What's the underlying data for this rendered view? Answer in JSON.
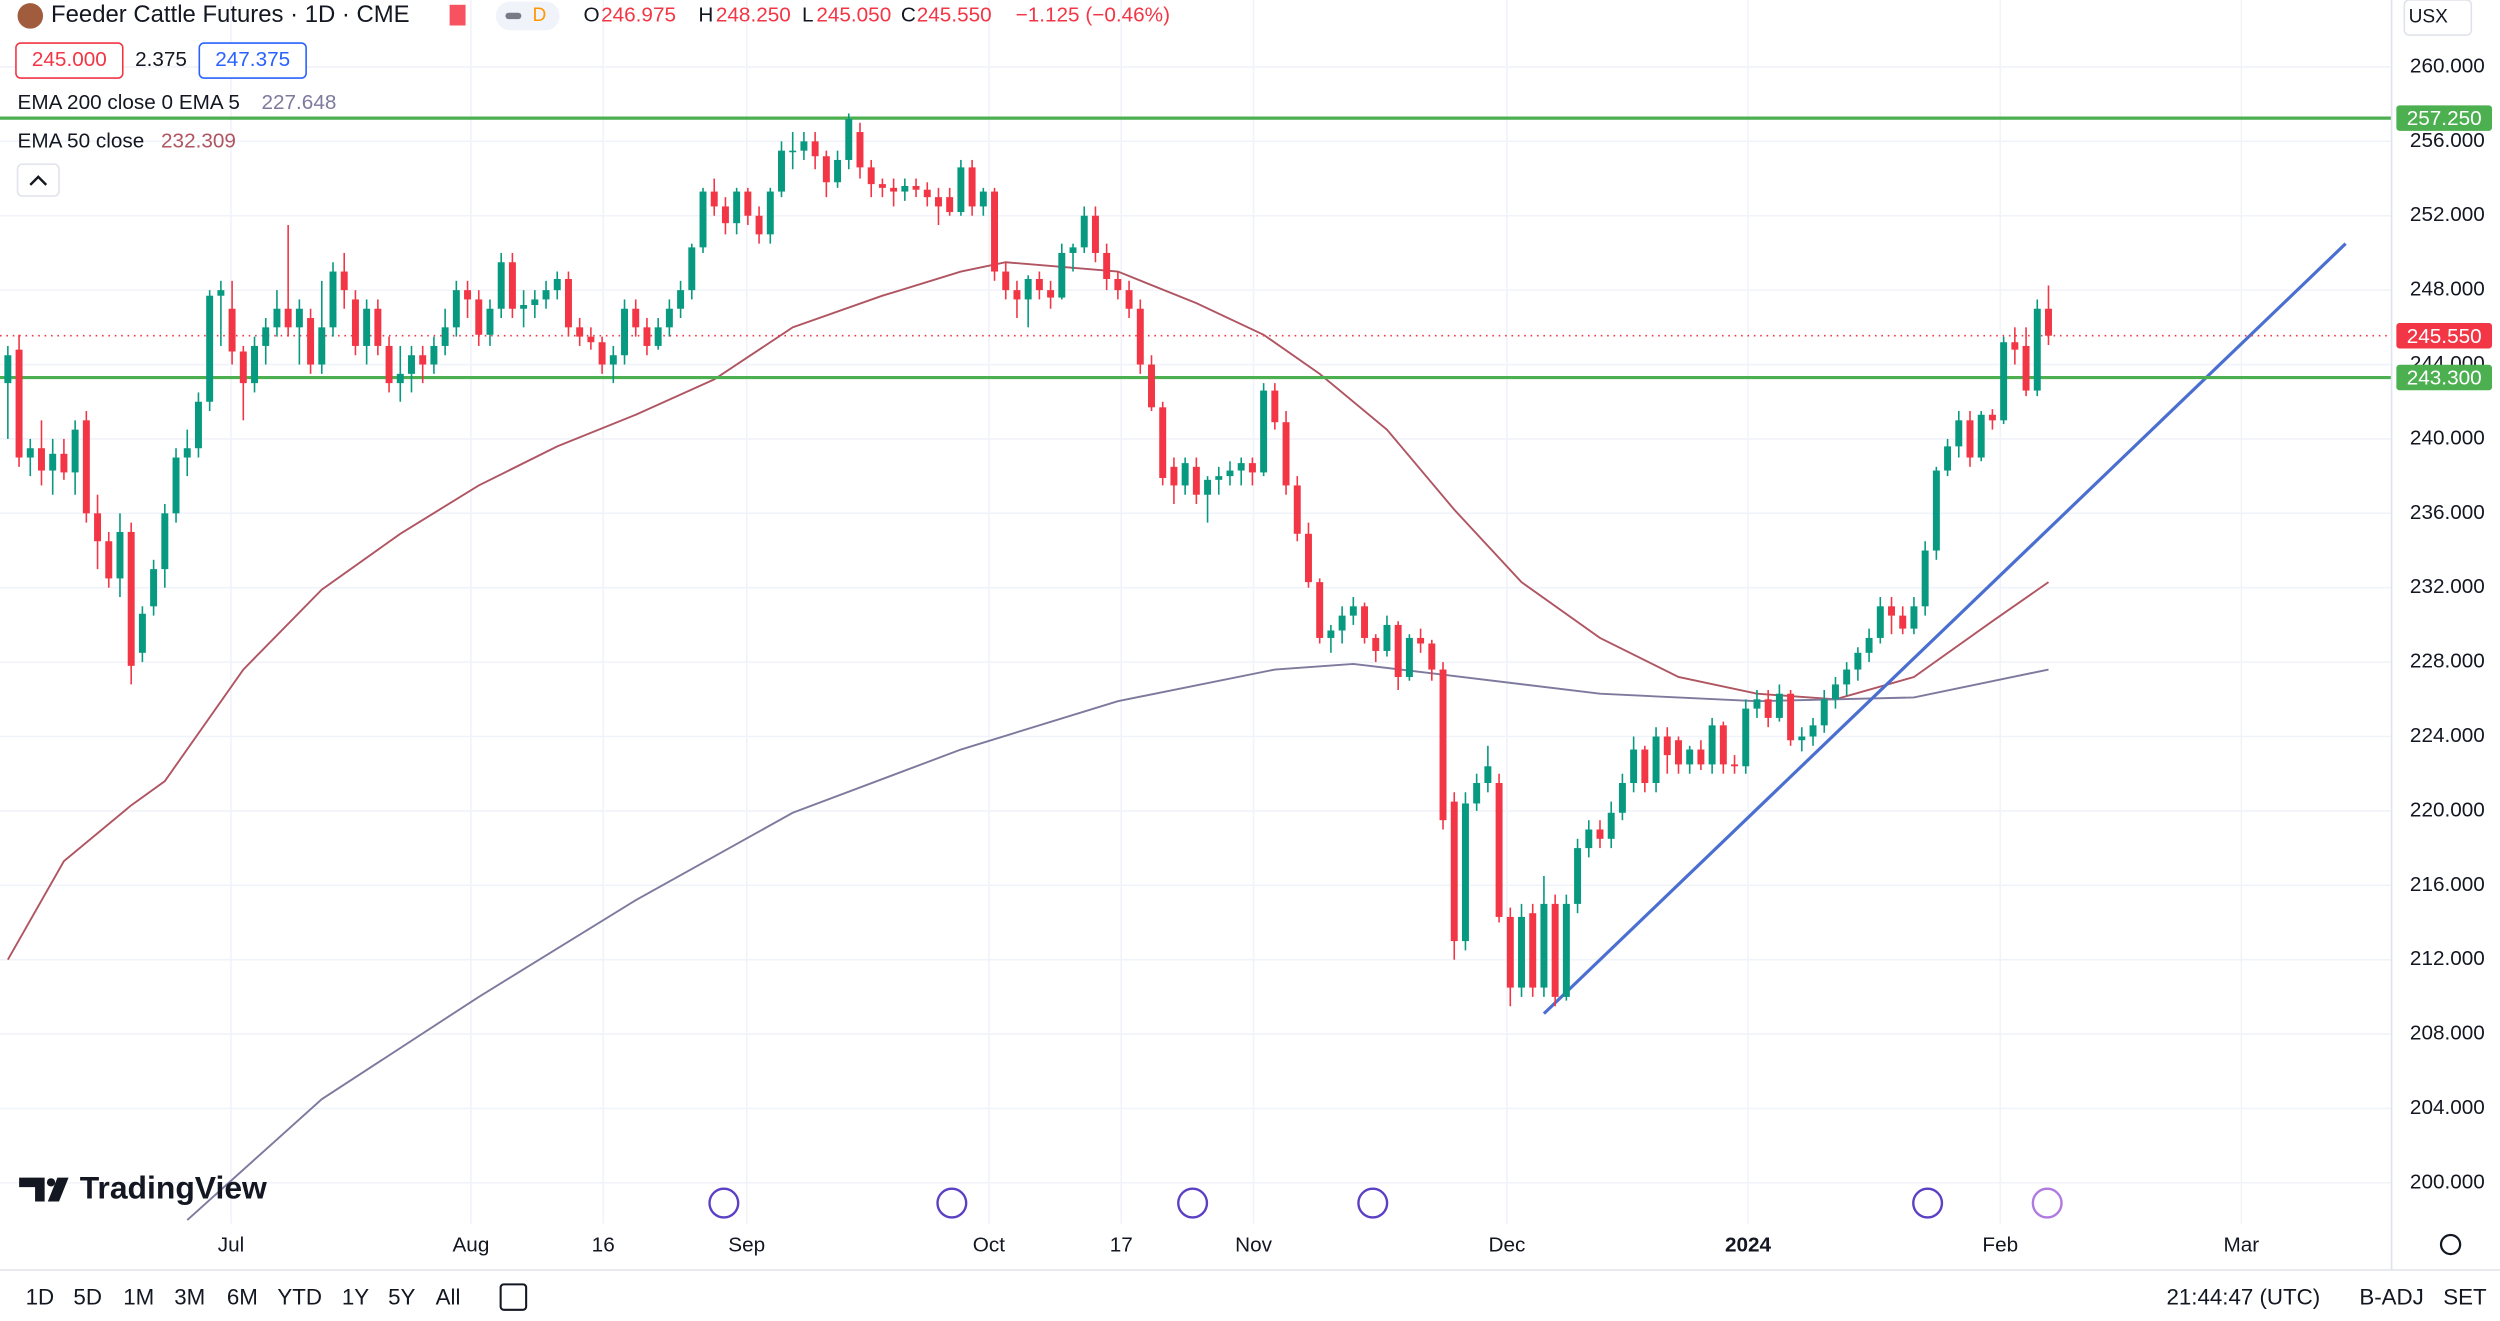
{
  "header": {
    "symbol": "Feeder Cattle Futures · 1D · CME",
    "badge": "D",
    "ohlc": [
      {
        "label": "O",
        "value": "246.975"
      },
      {
        "label": "H",
        "value": "248.250"
      },
      {
        "label": "L",
        "value": "245.050"
      },
      {
        "label": "C",
        "value": "245.550"
      }
    ],
    "change": "−1.125 (−0.46%)",
    "bid": "245.000",
    "spread": "2.375",
    "ask": "247.375",
    "currency": "USX"
  },
  "indicators": [
    {
      "name": "EMA 200 close 0 EMA 5",
      "value": "227.648"
    },
    {
      "name": "EMA 50 close",
      "value": "232.309"
    }
  ],
  "logo": "TradingView",
  "toolbar": {
    "ranges": [
      "1D",
      "5D",
      "1M",
      "3M",
      "6M",
      "YTD",
      "1Y",
      "5Y",
      "All"
    ],
    "time": "21:44:47 (UTC)",
    "adjust": "B-ADJ",
    "settings": "SET"
  },
  "chart_data": {
    "type": "candlestick",
    "up_color": "#089981",
    "down_color": "#f23645",
    "grid": true,
    "xlim": [
      -0.7,
      212.6
    ],
    "ylim": [
      197.8,
      263.6
    ],
    "xticks": [
      {
        "value": 19.9,
        "label": "Jul"
      },
      {
        "value": 41.3,
        "label": "Aug"
      },
      {
        "value": 53.1,
        "label": "16"
      },
      {
        "value": 65.9,
        "label": "Sep"
      },
      {
        "value": 87.5,
        "label": "Oct"
      },
      {
        "value": 99.3,
        "label": "17"
      },
      {
        "value": 111.1,
        "label": "Nov"
      },
      {
        "value": 133.7,
        "label": "Dec"
      },
      {
        "value": 155.2,
        "label": "2024"
      },
      {
        "value": 177.7,
        "label": "Feb"
      },
      {
        "value": 199.2,
        "label": "Mar"
      }
    ],
    "yticks": [
      {
        "value": 200,
        "label": "200.000"
      },
      {
        "value": 204,
        "label": "204.000"
      },
      {
        "value": 208,
        "label": "208.000"
      },
      {
        "value": 212,
        "label": "212.000"
      },
      {
        "value": 216,
        "label": "216.000"
      },
      {
        "value": 220,
        "label": "220.000"
      },
      {
        "value": 224,
        "label": "224.000"
      },
      {
        "value": 228,
        "label": "228.000"
      },
      {
        "value": 232,
        "label": "232.000"
      },
      {
        "value": 236,
        "label": "236.000"
      },
      {
        "value": 240,
        "label": "240.000"
      },
      {
        "value": 244,
        "label": "244.000"
      },
      {
        "value": 248,
        "label": "248.000"
      },
      {
        "value": 252,
        "label": "252.000"
      },
      {
        "value": 256,
        "label": "256.000"
      },
      {
        "value": 260,
        "label": "260.000"
      }
    ],
    "candles": [
      [
        243,
        245,
        240,
        244.5
      ],
      [
        244.8,
        245.6,
        238.5,
        239
      ],
      [
        239,
        240,
        238,
        239.5
      ],
      [
        239.5,
        241,
        237.5,
        238.3
      ],
      [
        238.3,
        240,
        237,
        239.2
      ],
      [
        239.2,
        240,
        237.8,
        238.2
      ],
      [
        238.2,
        241,
        237,
        240.5
      ],
      [
        241,
        241.5,
        235.5,
        236
      ],
      [
        236,
        237,
        233,
        234.5
      ],
      [
        234.5,
        235,
        232,
        232.5
      ],
      [
        232.5,
        236,
        231.5,
        235
      ],
      [
        235,
        235.5,
        226.8,
        227.8
      ],
      [
        228.5,
        231,
        228,
        230.6
      ],
      [
        231,
        233.5,
        230.5,
        233
      ],
      [
        233,
        236.5,
        232,
        236
      ],
      [
        236,
        239.5,
        235.5,
        239
      ],
      [
        239,
        240.5,
        238,
        239.5
      ],
      [
        239.5,
        242.5,
        239,
        242
      ],
      [
        242,
        248,
        241.5,
        247.7
      ],
      [
        247.7,
        248.5,
        245,
        248
      ],
      [
        247,
        248.5,
        244,
        244.7
      ],
      [
        244.7,
        245,
        241,
        243
      ],
      [
        243,
        245.5,
        242.5,
        245
      ],
      [
        245,
        246.5,
        244,
        246
      ],
      [
        246,
        248,
        245.5,
        247
      ],
      [
        247,
        251.5,
        245.5,
        246
      ],
      [
        246,
        247.5,
        244,
        247
      ],
      [
        246.5,
        247,
        243.5,
        244
      ],
      [
        244,
        248.5,
        243.5,
        246
      ],
      [
        246,
        249.5,
        245.5,
        249
      ],
      [
        249,
        250,
        247,
        248
      ],
      [
        247.5,
        248,
        244.5,
        245
      ],
      [
        245,
        247.5,
        244,
        247
      ],
      [
        247,
        247.5,
        244.5,
        245
      ],
      [
        245,
        245.5,
        242.5,
        243
      ],
      [
        243,
        245,
        242,
        243.5
      ],
      [
        243.5,
        245,
        242.5,
        244.5
      ],
      [
        244.5,
        245,
        243,
        244
      ],
      [
        244,
        245.5,
        243.5,
        245
      ],
      [
        245,
        247,
        244.5,
        246
      ],
      [
        246,
        248.5,
        245.5,
        248
      ],
      [
        248,
        248.5,
        246.5,
        247.5
      ],
      [
        247.5,
        248,
        245,
        245.6
      ],
      [
        245.6,
        247.5,
        245,
        247
      ],
      [
        247,
        250,
        246.5,
        249.5
      ],
      [
        249.5,
        250,
        246.5,
        247
      ],
      [
        247,
        248,
        246,
        247.2
      ],
      [
        247.2,
        248,
        246.5,
        247.5
      ],
      [
        247.5,
        248.5,
        247,
        248
      ],
      [
        248,
        249,
        247.5,
        248.6
      ],
      [
        248.6,
        249,
        245.5,
        246
      ],
      [
        246,
        246.5,
        245,
        245.5
      ],
      [
        245.5,
        246,
        244.8,
        245.2
      ],
      [
        245.2,
        245.5,
        243.5,
        244
      ],
      [
        244,
        245,
        243,
        244.5
      ],
      [
        244.5,
        247.5,
        244,
        247
      ],
      [
        247,
        247.5,
        245.5,
        246
      ],
      [
        246,
        246.5,
        244.5,
        245
      ],
      [
        245,
        246.5,
        244.8,
        246
      ],
      [
        246,
        247.5,
        245.5,
        247
      ],
      [
        247,
        248.5,
        246.5,
        248
      ],
      [
        248,
        250.5,
        247.5,
        250.3
      ],
      [
        250.3,
        253.5,
        250,
        253.3
      ],
      [
        253.3,
        254,
        252,
        252.5
      ],
      [
        252.5,
        253,
        251,
        251.6
      ],
      [
        251.6,
        253.5,
        251,
        253.3
      ],
      [
        253.3,
        253.5,
        251.5,
        252
      ],
      [
        252,
        252.5,
        250.5,
        251
      ],
      [
        251,
        253.5,
        250.5,
        253.3
      ],
      [
        253.3,
        256,
        253,
        255.5
      ],
      [
        255.5,
        256.5,
        254.5,
        255.5
      ],
      [
        255.5,
        256.5,
        255,
        256
      ],
      [
        256,
        256.5,
        254.5,
        255.2
      ],
      [
        255.2,
        255.5,
        253,
        253.8
      ],
      [
        253.8,
        255.5,
        253.5,
        255
      ],
      [
        255,
        257.5,
        254.5,
        257.2
      ],
      [
        256.5,
        257,
        254,
        254.6
      ],
      [
        254.6,
        255,
        253,
        253.7
      ],
      [
        253.7,
        254,
        253,
        253.5
      ],
      [
        253.5,
        254,
        252.5,
        253.3
      ],
      [
        253.3,
        254,
        252.8,
        253.6
      ],
      [
        253.6,
        254,
        253,
        253.4
      ],
      [
        253.4,
        253.8,
        252.5,
        253
      ],
      [
        253,
        253.5,
        251.5,
        252.5
      ],
      [
        253,
        253.5,
        252,
        252.2
      ],
      [
        252.2,
        255,
        252,
        254.6
      ],
      [
        254.6,
        255,
        252,
        252.5
      ],
      [
        252.5,
        253.5,
        252,
        253.3
      ],
      [
        253.3,
        253.5,
        248.5,
        249
      ],
      [
        249,
        249.5,
        247.5,
        248
      ],
      [
        248,
        248.5,
        246.5,
        247.5
      ],
      [
        247.5,
        248.8,
        246,
        248.6
      ],
      [
        248.6,
        249,
        247.5,
        248
      ],
      [
        248,
        248.5,
        247,
        247.6
      ],
      [
        247.6,
        250.5,
        247.5,
        250
      ],
      [
        250,
        250.5,
        249,
        250.3
      ],
      [
        250.3,
        252.5,
        250,
        252
      ],
      [
        252,
        252.5,
        249.5,
        250
      ],
      [
        250,
        250.5,
        248,
        248.6
      ],
      [
        248.6,
        249,
        247.5,
        248
      ],
      [
        248,
        248.5,
        246.5,
        247
      ],
      [
        247,
        247.5,
        243.5,
        244
      ],
      [
        244,
        244.5,
        241.5,
        241.7
      ],
      [
        241.7,
        242,
        237.5,
        237.9
      ],
      [
        238.5,
        239,
        236.5,
        237.5
      ],
      [
        237.5,
        239,
        237,
        238.7
      ],
      [
        238.5,
        239,
        236.5,
        237
      ],
      [
        237,
        238,
        235.5,
        237.8
      ],
      [
        237.8,
        238.5,
        237,
        238
      ],
      [
        238,
        238.8,
        237.5,
        238.3
      ],
      [
        238.3,
        239,
        237.5,
        238.7
      ],
      [
        238.7,
        239,
        237.5,
        238.2
      ],
      [
        238.2,
        243,
        238,
        242.6
      ],
      [
        242.6,
        243,
        240.5,
        240.9
      ],
      [
        240.9,
        241.5,
        237,
        237.5
      ],
      [
        237.5,
        238,
        234.5,
        234.9
      ],
      [
        234.9,
        235.5,
        232,
        232.3
      ],
      [
        232.3,
        232.5,
        229,
        229.3
      ],
      [
        229.3,
        230,
        228.5,
        229.7
      ],
      [
        229.7,
        231,
        229,
        230.5
      ],
      [
        230.5,
        231.5,
        230,
        231
      ],
      [
        231,
        231.2,
        229,
        229.3
      ],
      [
        229.3,
        229.5,
        228,
        228.6
      ],
      [
        228.6,
        230.5,
        228.3,
        230
      ],
      [
        230,
        230.2,
        226.5,
        227.2
      ],
      [
        227.2,
        229.5,
        227,
        229.3
      ],
      [
        229.3,
        229.8,
        228.5,
        229
      ],
      [
        229,
        229.2,
        227,
        227.6
      ],
      [
        227.6,
        228,
        219,
        219.5
      ],
      [
        220.5,
        221,
        212,
        213
      ],
      [
        213,
        221,
        212.5,
        220.4
      ],
      [
        220.4,
        222,
        220,
        221.5
      ],
      [
        221.5,
        223.5,
        221,
        222.4
      ],
      [
        221.5,
        222,
        214,
        214.3
      ],
      [
        214.3,
        214.8,
        209.5,
        210.5
      ],
      [
        210.5,
        215,
        210,
        214.3
      ],
      [
        214.5,
        215,
        210,
        210.5
      ],
      [
        210.5,
        216.5,
        210,
        215
      ],
      [
        215,
        215.5,
        209.5,
        210
      ],
      [
        210,
        215.5,
        209.8,
        215
      ],
      [
        215,
        218.5,
        214.5,
        218
      ],
      [
        218,
        219.5,
        217.5,
        219
      ],
      [
        219,
        219.5,
        218,
        218.5
      ],
      [
        218.5,
        220.5,
        218,
        219.9
      ],
      [
        219.9,
        222,
        219.5,
        221.5
      ],
      [
        221.5,
        224,
        221,
        223.3
      ],
      [
        223.3,
        223.5,
        221,
        221.5
      ],
      [
        221.5,
        224.5,
        221,
        224
      ],
      [
        224,
        224.5,
        222,
        223
      ],
      [
        223.8,
        224,
        222,
        222.5
      ],
      [
        222.5,
        223.5,
        222,
        223.3
      ],
      [
        223.3,
        223.8,
        222.2,
        222.5
      ],
      [
        222.5,
        225,
        222,
        224.6
      ],
      [
        224.6,
        224.8,
        222,
        222.5
      ],
      [
        222.5,
        223,
        222,
        222.4
      ],
      [
        222.4,
        226,
        222,
        225.5
      ],
      [
        225.5,
        226.5,
        225,
        226
      ],
      [
        226,
        226.5,
        224.5,
        225
      ],
      [
        225,
        226.8,
        224.8,
        226.3
      ],
      [
        226.3,
        226.5,
        223.5,
        223.8
      ],
      [
        223.8,
        224.5,
        223.2,
        224
      ],
      [
        224,
        225,
        223.5,
        224.6
      ],
      [
        224.6,
        226.5,
        224.2,
        226
      ],
      [
        226,
        227.2,
        225.5,
        226.8
      ],
      [
        226.8,
        228,
        226.2,
        227.6
      ],
      [
        227.6,
        228.8,
        227,
        228.5
      ],
      [
        228.5,
        229.8,
        228,
        229.3
      ],
      [
        229.3,
        231.5,
        229,
        231
      ],
      [
        231,
        231.5,
        229.5,
        230.5
      ],
      [
        230.5,
        231,
        229.5,
        229.8
      ],
      [
        229.8,
        231.5,
        229.5,
        231
      ],
      [
        231,
        234.5,
        230.5,
        234
      ],
      [
        234,
        238.5,
        233.5,
        238.3
      ],
      [
        238.3,
        240,
        238,
        239.6
      ],
      [
        239.6,
        241.5,
        239,
        241
      ],
      [
        241,
        241.5,
        238.5,
        239
      ],
      [
        239,
        241.5,
        238.8,
        241.3
      ],
      [
        241.3,
        241.6,
        240.5,
        241
      ],
      [
        241,
        245.5,
        240.8,
        245.2
      ],
      [
        245.2,
        246,
        244,
        244.8
      ],
      [
        245,
        246,
        242.3,
        242.6
      ],
      [
        242.6,
        247.5,
        242.3,
        247
      ],
      [
        247,
        248.25,
        245.05,
        245.55
      ]
    ],
    "lines": [
      {
        "name": "EMA 50",
        "color": "#b05562",
        "x": [
          0,
          5,
          11,
          14,
          21,
          28,
          35,
          42,
          49,
          56,
          63,
          70,
          78,
          85,
          89,
          99,
          106,
          112,
          117,
          123,
          129,
          135,
          142,
          149,
          156,
          163,
          170,
          177,
          182
        ],
        "values": [
          212,
          217.3,
          220.3,
          221.6,
          227.6,
          231.9,
          234.9,
          237.5,
          239.6,
          241.3,
          243.2,
          246,
          247.7,
          249,
          249.5,
          249,
          247.3,
          245.6,
          243.5,
          240.5,
          236.2,
          232.3,
          229.3,
          227.2,
          226.3,
          226,
          227.2,
          230.2,
          232.3
        ]
      },
      {
        "name": "EMA 200",
        "color": "#7e7a9e",
        "x": [
          16,
          28,
          42,
          56,
          70,
          85,
          99,
          113,
          120,
          127,
          142,
          156,
          170,
          182
        ],
        "values": [
          198,
          204.5,
          210,
          215.2,
          219.9,
          223.3,
          225.9,
          227.6,
          227.9,
          227.4,
          226.3,
          225.9,
          226.1,
          227.6
        ]
      },
      {
        "name": "trend",
        "color": "#4a6fd0",
        "x": [
          137,
          208.5
        ],
        "values": [
          209.1,
          250.5
        ]
      }
    ],
    "hlines": [
      {
        "value": 257.25,
        "label": "257.250",
        "color": "#4caf50"
      },
      {
        "value": 243.3,
        "label": "243.300",
        "color": "#4caf50"
      }
    ],
    "last_price": {
      "value": 245.55,
      "label": "245.550",
      "color": "#f23645"
    }
  }
}
